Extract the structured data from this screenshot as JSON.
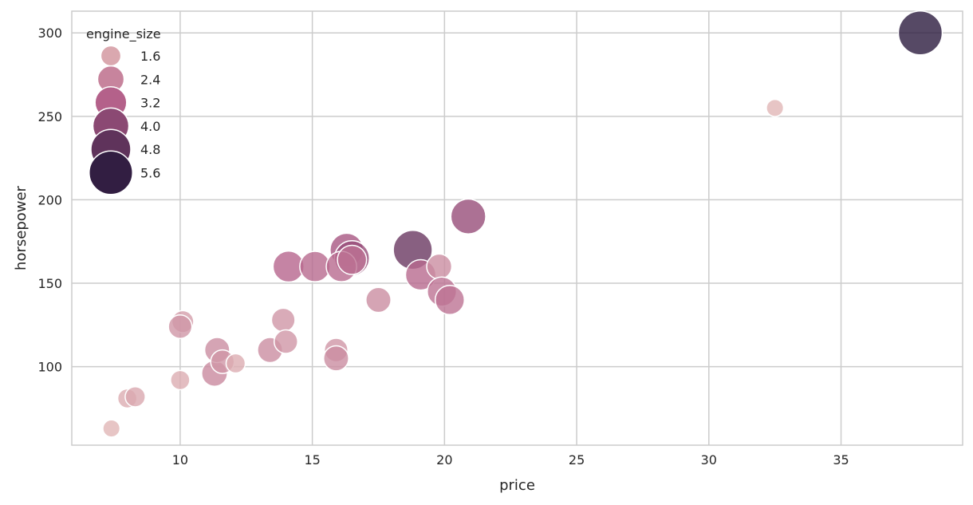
{
  "chart_data": {
    "type": "scatter",
    "title": "",
    "xlabel": "price",
    "ylabel": "horsepower",
    "xlim": [
      5.9,
      39.6
    ],
    "ylim": [
      53,
      313
    ],
    "x_ticks": [
      10,
      15,
      20,
      25,
      30,
      35
    ],
    "y_ticks": [
      100,
      150,
      200,
      250,
      300
    ],
    "grid": true,
    "legend": {
      "title": "engine_size",
      "placement": "top-left",
      "entries": [
        {
          "label": "1.6",
          "value": 1.6
        },
        {
          "label": "2.4",
          "value": 2.4
        },
        {
          "label": "3.2",
          "value": 3.2
        },
        {
          "label": "4.0",
          "value": 4.0
        },
        {
          "label": "4.8",
          "value": 4.8
        },
        {
          "label": "5.6",
          "value": 5.6
        }
      ]
    },
    "size_var": "engine_size",
    "hue_var": "engine_size",
    "size_range": [
      1.0,
      5.7
    ],
    "colors": {
      "light": "#e8c3bd",
      "mid": "#b05a87",
      "dark": "#2c1b3f",
      "grid": "#cccccc",
      "axes_edge": "#cccccc",
      "background": "#ffffff",
      "marker_edge": "#ffffff"
    },
    "points": [
      {
        "x": 7.4,
        "y": 63,
        "size": 1.3
      },
      {
        "x": 8.0,
        "y": 81,
        "size": 1.5
      },
      {
        "x": 8.3,
        "y": 82,
        "size": 1.6
      },
      {
        "x": 10.0,
        "y": 92,
        "size": 1.5
      },
      {
        "x": 10.1,
        "y": 127,
        "size": 1.8
      },
      {
        "x": 10.0,
        "y": 124,
        "size": 2.0
      },
      {
        "x": 11.3,
        "y": 96,
        "size": 2.3
      },
      {
        "x": 11.4,
        "y": 110,
        "size": 2.2
      },
      {
        "x": 11.6,
        "y": 103,
        "size": 2.0
      },
      {
        "x": 12.1,
        "y": 102,
        "size": 1.5
      },
      {
        "x": 13.4,
        "y": 110,
        "size": 2.2
      },
      {
        "x": 13.9,
        "y": 128,
        "size": 2.0
      },
      {
        "x": 14.0,
        "y": 115,
        "size": 2.0
      },
      {
        "x": 14.1,
        "y": 160,
        "size": 3.1
      },
      {
        "x": 15.1,
        "y": 160,
        "size": 3.0
      },
      {
        "x": 15.9,
        "y": 110,
        "size": 2.0
      },
      {
        "x": 15.9,
        "y": 105,
        "size": 2.2
      },
      {
        "x": 16.3,
        "y": 170,
        "size": 3.5
      },
      {
        "x": 16.5,
        "y": 165,
        "size": 3.8
      },
      {
        "x": 16.1,
        "y": 160,
        "size": 3.0
      },
      {
        "x": 16.5,
        "y": 164,
        "size": 2.8
      },
      {
        "x": 17.5,
        "y": 140,
        "size": 2.2
      },
      {
        "x": 18.8,
        "y": 170,
        "size": 4.6
      },
      {
        "x": 19.1,
        "y": 155,
        "size": 3.0
      },
      {
        "x": 19.8,
        "y": 160,
        "size": 2.2
      },
      {
        "x": 19.9,
        "y": 145,
        "size": 2.8
      },
      {
        "x": 20.2,
        "y": 140,
        "size": 2.8
      },
      {
        "x": 20.9,
        "y": 190,
        "size": 3.8
      },
      {
        "x": 32.5,
        "y": 255,
        "size": 1.3
      },
      {
        "x": 38.0,
        "y": 300,
        "size": 5.7
      }
    ]
  }
}
